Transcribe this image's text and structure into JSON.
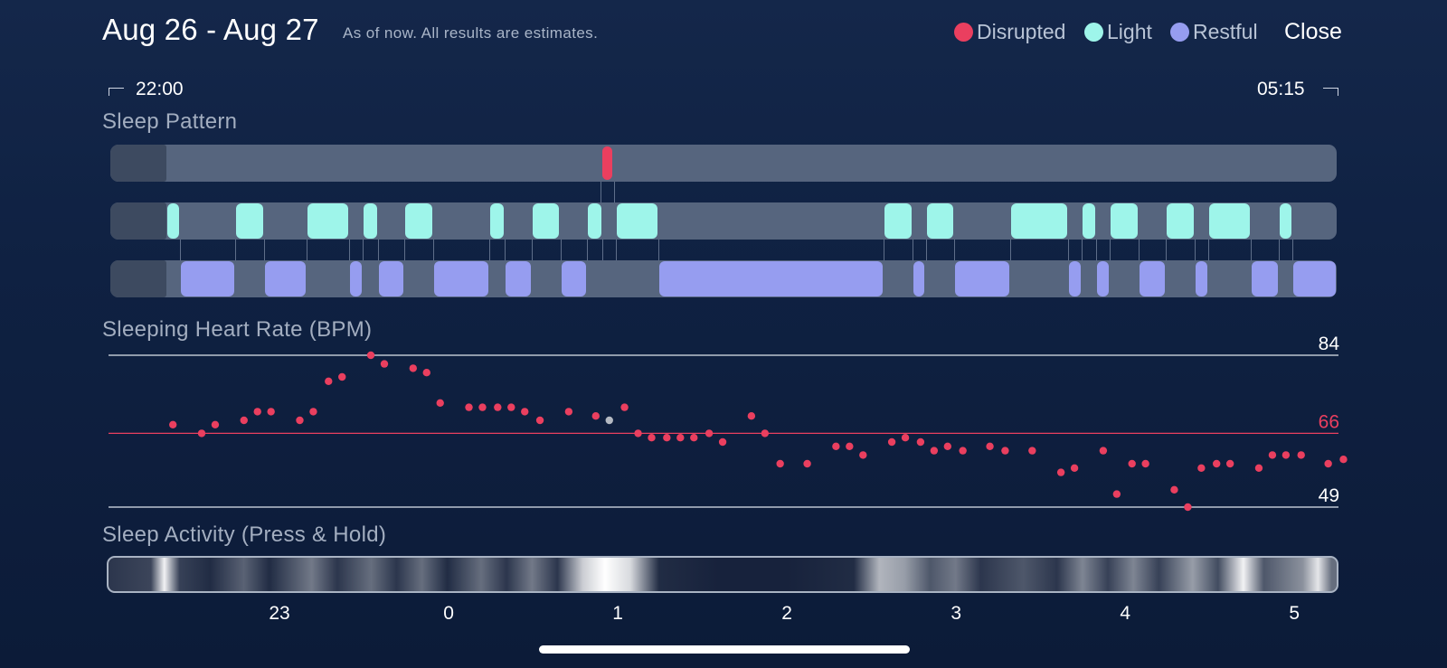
{
  "header": {
    "date_range": "Aug 26 - Aug 27",
    "note": "As of now. All results are estimates.",
    "close_label": "Close"
  },
  "legend": [
    {
      "label": "Disrupted",
      "color": "#ea3f5f"
    },
    {
      "label": "Light",
      "color": "#9ef5ea"
    },
    {
      "label": "Restful",
      "color": "#969df0"
    }
  ],
  "time_range": {
    "start": "22:00",
    "end": "05:15"
  },
  "sections": {
    "pattern_title": "Sleep Pattern",
    "heart_title": "Sleeping Heart Rate (BPM)",
    "activity_title": "Sleep Activity (Press & Hold)"
  },
  "chart_data": [
    {
      "type": "timeline",
      "title": "Sleep Pattern",
      "x_unit": "hours since 22:00",
      "x_range": [
        0,
        7.25
      ],
      "data_start": 0.33,
      "rows": [
        {
          "name": "Disrupted",
          "color": "#ea3f5f",
          "segments": [
            [
              2.9,
              2.98
            ]
          ]
        },
        {
          "name": "Light",
          "color": "#9ef5ea",
          "segments": [
            [
              0.33,
              0.41
            ],
            [
              0.74,
              0.91
            ],
            [
              1.16,
              1.41
            ],
            [
              1.49,
              1.58
            ],
            [
              1.74,
              1.91
            ],
            [
              2.24,
              2.33
            ],
            [
              2.49,
              2.66
            ],
            [
              2.82,
              2.91
            ],
            [
              2.99,
              3.24
            ],
            [
              4.57,
              4.74
            ],
            [
              4.82,
              4.99
            ],
            [
              5.32,
              5.66
            ],
            [
              5.74,
              5.83
            ],
            [
              5.91,
              6.08
            ],
            [
              6.24,
              6.41
            ],
            [
              6.49,
              6.74
            ],
            [
              6.91,
              6.99
            ]
          ]
        },
        {
          "name": "Restful",
          "color": "#969df0",
          "segments": [
            [
              0.41,
              0.74
            ],
            [
              0.91,
              1.16
            ],
            [
              1.41,
              1.49
            ],
            [
              1.58,
              1.74
            ],
            [
              1.91,
              2.24
            ],
            [
              2.33,
              2.49
            ],
            [
              2.66,
              2.82
            ],
            [
              3.24,
              4.57
            ],
            [
              4.74,
              4.82
            ],
            [
              4.99,
              5.32
            ],
            [
              5.66,
              5.74
            ],
            [
              5.83,
              5.91
            ],
            [
              6.08,
              6.24
            ],
            [
              6.41,
              6.49
            ],
            [
              6.74,
              6.91
            ],
            [
              6.99,
              7.25
            ]
          ]
        }
      ]
    },
    {
      "type": "scatter",
      "title": "Sleeping Heart Rate (BPM)",
      "x_unit": "hours since 22:00",
      "x_range": [
        0,
        7.25
      ],
      "ylim": [
        49,
        84
      ],
      "reference_lines": [
        {
          "value": 84,
          "label": "84",
          "color": "#bcc4d0"
        },
        {
          "value": 66,
          "label": "66",
          "color": "#ea3f5f"
        },
        {
          "value": 49,
          "label": "49",
          "color": "#bcc4d0"
        }
      ],
      "point_color": "#ea3f5f",
      "highlight_color": "#b4b9c2",
      "points": [
        [
          0.37,
          68
        ],
        [
          0.54,
          66
        ],
        [
          0.62,
          68
        ],
        [
          0.79,
          69
        ],
        [
          0.87,
          71
        ],
        [
          0.95,
          71
        ],
        [
          1.12,
          69
        ],
        [
          1.2,
          71
        ],
        [
          1.29,
          78
        ],
        [
          1.37,
          79
        ],
        [
          1.54,
          84
        ],
        [
          1.62,
          82
        ],
        [
          1.79,
          81
        ],
        [
          1.87,
          80
        ],
        [
          1.95,
          73
        ],
        [
          2.12,
          72
        ],
        [
          2.2,
          72
        ],
        [
          2.29,
          72
        ],
        [
          2.37,
          72
        ],
        [
          2.45,
          71
        ],
        [
          2.54,
          69
        ],
        [
          2.71,
          71
        ],
        [
          2.87,
          70
        ],
        [
          2.95,
          69,
          "h"
        ],
        [
          3.04,
          72
        ],
        [
          3.12,
          66
        ],
        [
          3.2,
          65
        ],
        [
          3.29,
          65
        ],
        [
          3.37,
          65
        ],
        [
          3.45,
          65
        ],
        [
          3.54,
          66
        ],
        [
          3.62,
          64
        ],
        [
          3.79,
          70
        ],
        [
          3.87,
          66
        ],
        [
          3.96,
          59
        ],
        [
          4.12,
          59
        ],
        [
          4.29,
          63
        ],
        [
          4.37,
          63
        ],
        [
          4.45,
          61
        ],
        [
          4.62,
          64
        ],
        [
          4.7,
          65
        ],
        [
          4.79,
          64
        ],
        [
          4.87,
          62
        ],
        [
          4.95,
          63
        ],
        [
          5.04,
          62
        ],
        [
          5.2,
          63
        ],
        [
          5.29,
          62
        ],
        [
          5.45,
          62
        ],
        [
          5.62,
          57
        ],
        [
          5.7,
          58
        ],
        [
          5.87,
          62
        ],
        [
          5.95,
          52
        ],
        [
          6.04,
          59
        ],
        [
          6.12,
          59
        ],
        [
          6.29,
          53
        ],
        [
          6.37,
          49
        ],
        [
          6.45,
          58
        ],
        [
          6.54,
          59
        ],
        [
          6.62,
          59
        ],
        [
          6.79,
          58
        ],
        [
          6.87,
          61
        ],
        [
          6.95,
          61
        ],
        [
          7.04,
          61
        ],
        [
          7.2,
          59
        ],
        [
          7.29,
          60
        ]
      ]
    },
    {
      "type": "heatmap",
      "title": "Sleep Activity (Press & Hold)",
      "x_unit": "hours since 22:00",
      "x_range": [
        0,
        7.25
      ],
      "intensity": [
        [
          0.0,
          0.15
        ],
        [
          0.25,
          0.22
        ],
        [
          0.33,
          0.95
        ],
        [
          0.42,
          0.2
        ],
        [
          0.6,
          0.1
        ],
        [
          0.8,
          0.35
        ],
        [
          0.95,
          0.1
        ],
        [
          1.2,
          0.45
        ],
        [
          1.35,
          0.15
        ],
        [
          1.55,
          0.4
        ],
        [
          1.7,
          0.15
        ],
        [
          1.85,
          0.4
        ],
        [
          2.0,
          0.1
        ],
        [
          2.2,
          0.4
        ],
        [
          2.35,
          0.15
        ],
        [
          2.5,
          0.45
        ],
        [
          2.65,
          0.15
        ],
        [
          2.8,
          0.8
        ],
        [
          2.93,
          1.0
        ],
        [
          3.08,
          0.85
        ],
        [
          3.25,
          0.1
        ],
        [
          3.6,
          0.05
        ],
        [
          4.0,
          0.05
        ],
        [
          4.4,
          0.1
        ],
        [
          4.55,
          0.7
        ],
        [
          4.7,
          0.6
        ],
        [
          4.85,
          0.3
        ],
        [
          5.0,
          0.45
        ],
        [
          5.15,
          0.15
        ],
        [
          5.4,
          0.3
        ],
        [
          5.6,
          0.15
        ],
        [
          5.75,
          0.5
        ],
        [
          5.9,
          0.2
        ],
        [
          6.05,
          0.5
        ],
        [
          6.2,
          0.2
        ],
        [
          6.4,
          0.6
        ],
        [
          6.55,
          0.25
        ],
        [
          6.7,
          0.95
        ],
        [
          6.82,
          0.3
        ],
        [
          7.05,
          0.55
        ],
        [
          7.14,
          0.9
        ],
        [
          7.22,
          0.4
        ]
      ]
    }
  ],
  "x_axis": {
    "tick_labels": [
      "23",
      "0",
      "1",
      "2",
      "3",
      "4",
      "5"
    ],
    "tick_hours": [
      1,
      2,
      3,
      4,
      5,
      6,
      7
    ]
  }
}
